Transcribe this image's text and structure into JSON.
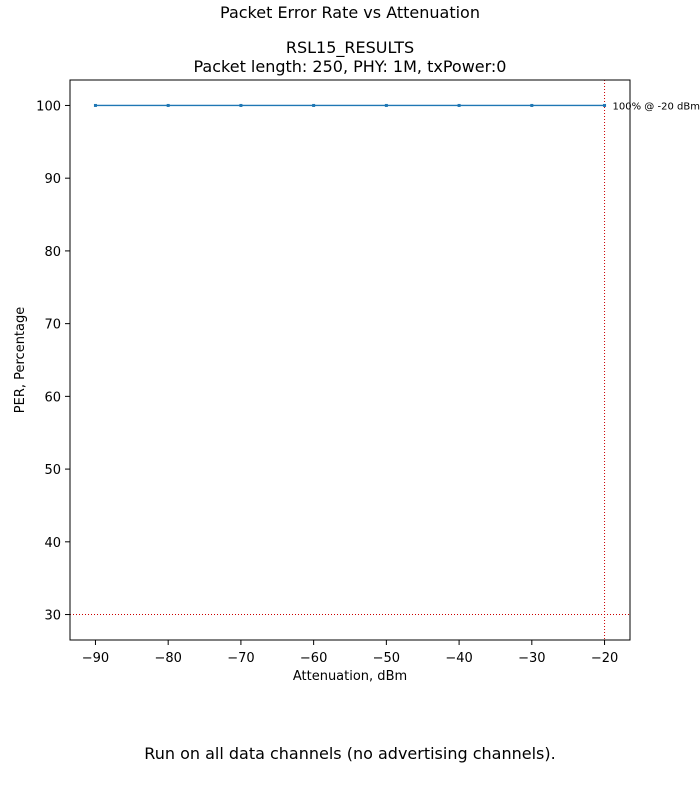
{
  "suptitle": "Packet Error Rate vs Attenuation",
  "footer_note": "Run on all data channels (no advertising channels).",
  "chart_data": {
    "type": "line",
    "title_line1": "RSL15_RESULTS",
    "title_line2": "Packet length: 250, PHY: 1M, txPower:0",
    "xlabel": "Attenuation, dBm",
    "ylabel": "PER, Percentage",
    "xlim": [
      -93.5,
      -16.5
    ],
    "ylim": [
      26.5,
      103.5
    ],
    "xticks": [
      -90,
      -80,
      -70,
      -60,
      -50,
      -40,
      -30,
      -20
    ],
    "xtick_labels": [
      "−90",
      "−80",
      "−70",
      "−60",
      "−50",
      "−40",
      "−30",
      "−20"
    ],
    "yticks": [
      30,
      40,
      50,
      60,
      70,
      80,
      90,
      100
    ],
    "ytick_labels": [
      "30",
      "40",
      "50",
      "60",
      "70",
      "80",
      "90",
      "100"
    ],
    "grid": false,
    "series": [
      {
        "color": "#1f77b4",
        "x": [
          -90,
          -80,
          -70,
          -60,
          -50,
          -40,
          -30,
          -20
        ],
        "y": [
          100,
          100,
          100,
          100,
          100,
          100,
          100,
          100
        ]
      }
    ],
    "reference_lines": {
      "vertical_x": -20,
      "horizontal_y": 30,
      "color": "#cc0000"
    },
    "annotation": {
      "text": "100% @ -20 dBm",
      "x": -20,
      "y": 100
    }
  }
}
